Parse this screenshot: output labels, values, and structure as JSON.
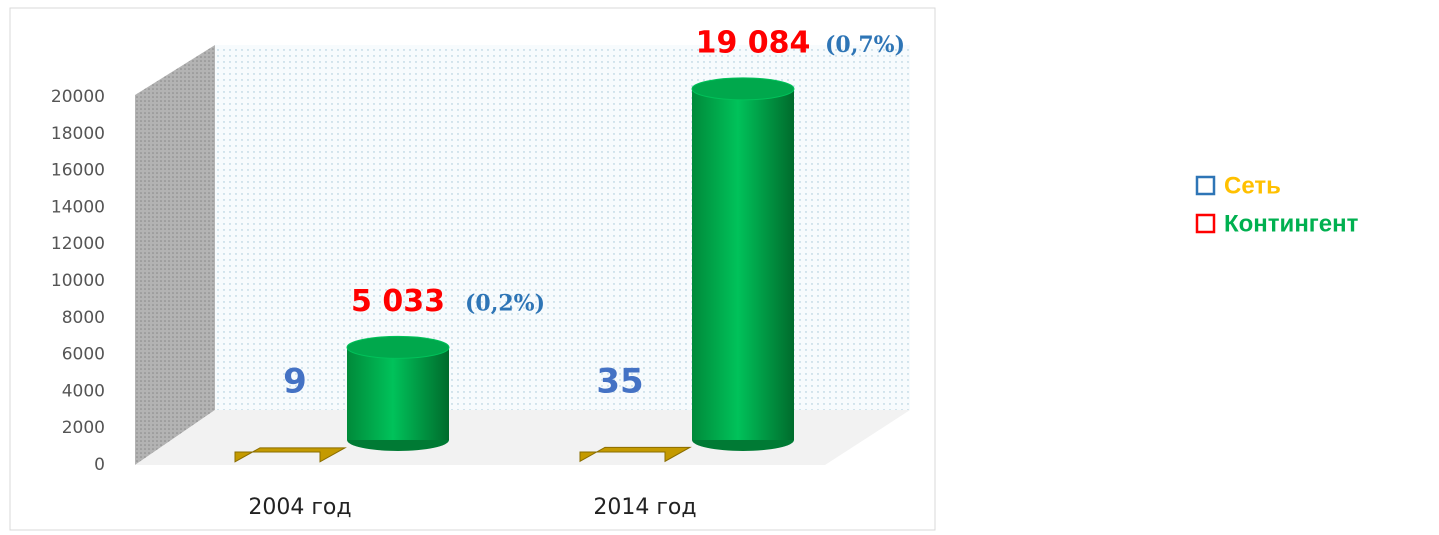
{
  "chart_data": {
    "type": "bar3d",
    "categories": [
      "2004 год",
      "2014 год"
    ],
    "series": [
      {
        "name": "Сеть",
        "color": "#c49a00",
        "values": [
          9,
          35
        ]
      },
      {
        "name": "Контингент",
        "color": "#00b050",
        "values": [
          5033,
          19084
        ],
        "value_labels": [
          "5 033",
          "19 084"
        ],
        "annotations": [
          "(0,2%)",
          "(0,7%)"
        ]
      }
    ],
    "ylim": [
      0,
      20000
    ],
    "yticks": [
      0,
      2000,
      4000,
      6000,
      8000,
      10000,
      12000,
      14000,
      16000,
      18000,
      20000
    ],
    "grid": false
  }
}
